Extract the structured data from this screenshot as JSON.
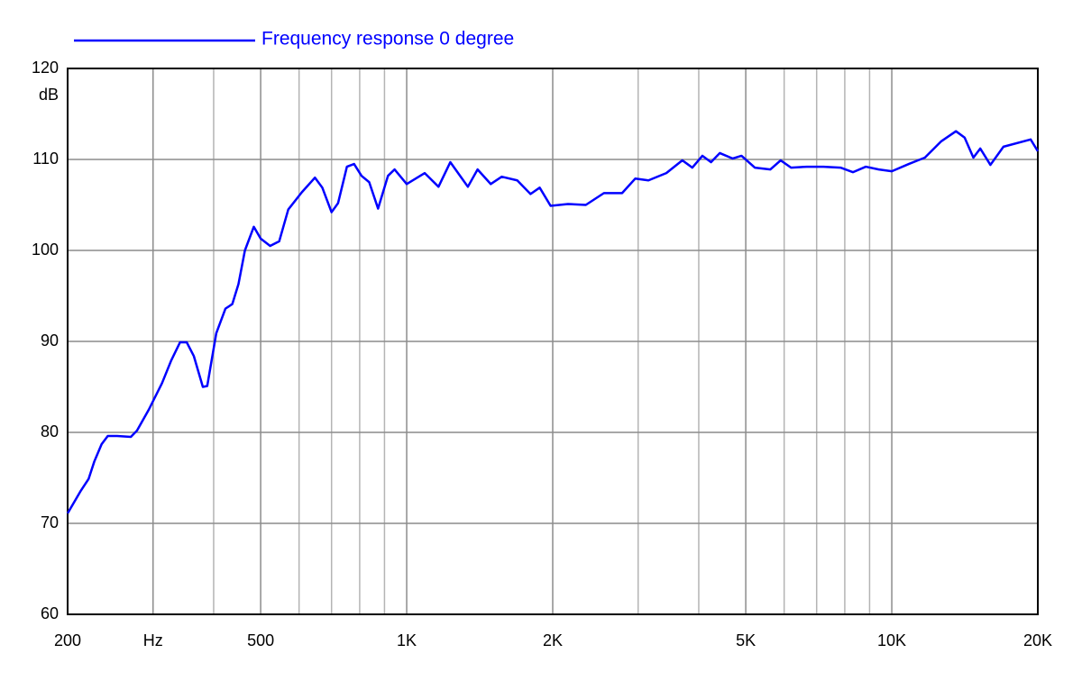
{
  "chart_data": {
    "type": "line",
    "legend_text": "Frequency response 0 degree",
    "ylabel": "dB",
    "x_scale": "log",
    "xlim": [
      200,
      20000
    ],
    "ylim": [
      60,
      120
    ],
    "yticks": [
      60,
      70,
      80,
      90,
      100,
      110,
      120
    ],
    "xticks": [
      200,
      {
        "value": 300,
        "label": "Hz"
      },
      500,
      {
        "value": 1000,
        "label": "1K"
      },
      {
        "value": 2000,
        "label": "2K"
      },
      {
        "value": 5000,
        "label": "5K"
      },
      {
        "value": 10000,
        "label": "10K"
      },
      {
        "value": 20000,
        "label": "20K"
      }
    ],
    "xminor": [
      400,
      600,
      700,
      800,
      900,
      3000,
      4000,
      6000,
      7000,
      8000,
      9000
    ],
    "grid": true,
    "series": [
      {
        "name": "Frequency response 0 degree",
        "color": "#0000ff",
        "x": [
          200,
          213,
          221,
          227,
          235,
          242,
          253,
          270,
          278,
          294,
          313,
          327,
          341,
          352,
          364,
          380,
          388,
          405,
          423,
          437,
          450,
          464,
          484,
          500,
          523,
          546,
          570,
          608,
          647,
          670,
          700,
          722,
          753,
          779,
          807,
          837,
          873,
          915,
          944,
          1000,
          1089,
          1163,
          1230,
          1337,
          1400,
          1490,
          1570,
          1690,
          1800,
          1880,
          1980,
          2150,
          2340,
          2550,
          2780,
          2960,
          3150,
          3430,
          3700,
          3880,
          4070,
          4240,
          4420,
          4700,
          4900,
          5220,
          5620,
          5900,
          6200,
          6680,
          7230,
          7840,
          8320,
          8840,
          9400,
          10000,
          10840,
          11700,
          12650,
          13560,
          14130,
          14730,
          15220,
          15970,
          16990,
          19330,
          20000
        ],
        "values": [
          71.1,
          73.6,
          74.9,
          76.8,
          78.7,
          79.6,
          79.6,
          79.5,
          80.2,
          82.5,
          85.4,
          87.9,
          89.9,
          89.9,
          88.4,
          85.0,
          85.1,
          90.9,
          93.6,
          94.1,
          96.3,
          100.0,
          102.6,
          101.3,
          100.5,
          101.0,
          104.5,
          106.4,
          108.0,
          106.9,
          104.2,
          105.2,
          109.2,
          109.5,
          108.2,
          107.5,
          104.6,
          108.2,
          108.9,
          107.3,
          108.5,
          107.0,
          109.7,
          107.0,
          108.9,
          107.3,
          108.1,
          107.7,
          106.2,
          106.9,
          104.9,
          105.1,
          105.0,
          106.3,
          106.3,
          107.9,
          107.7,
          108.5,
          109.9,
          109.1,
          110.4,
          109.7,
          110.7,
          110.1,
          110.4,
          109.1,
          108.9,
          109.9,
          109.1,
          109.2,
          109.2,
          109.1,
          108.6,
          109.2,
          108.9,
          108.7,
          109.5,
          110.2,
          112.0,
          113.1,
          112.4,
          110.2,
          111.2,
          109.4,
          111.4,
          112.2,
          110.9
        ]
      }
    ]
  }
}
